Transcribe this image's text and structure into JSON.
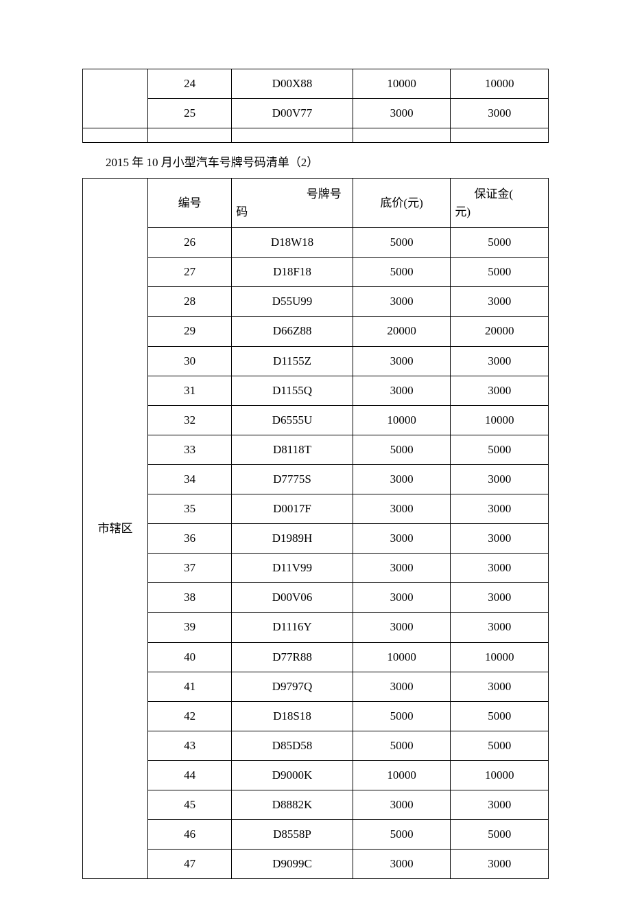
{
  "title2": "2015 年 10 月小型汽车号牌号码清单（2）",
  "headers": {
    "num": "编号",
    "plate_top": "号牌号",
    "plate_bot": "码",
    "price": "底价(元)",
    "deposit_top": "保证金(",
    "deposit_bot": "元)"
  },
  "region2": "市辖区",
  "table1": [
    {
      "num": "24",
      "plate": "D00X88",
      "price": "10000",
      "deposit": "10000"
    },
    {
      "num": "25",
      "plate": "D00V77",
      "price": "3000",
      "deposit": "3000"
    }
  ],
  "table2": [
    {
      "num": "26",
      "plate": "D18W18",
      "price": "5000",
      "deposit": "5000"
    },
    {
      "num": "27",
      "plate": "D18F18",
      "price": "5000",
      "deposit": "5000"
    },
    {
      "num": "28",
      "plate": "D55U99",
      "price": "3000",
      "deposit": "3000"
    },
    {
      "num": "29",
      "plate": "D66Z88",
      "price": "20000",
      "deposit": "20000"
    },
    {
      "num": "30",
      "plate": "D1155Z",
      "price": "3000",
      "deposit": "3000"
    },
    {
      "num": "31",
      "plate": "D1155Q",
      "price": "3000",
      "deposit": "3000"
    },
    {
      "num": "32",
      "plate": "D6555U",
      "price": "10000",
      "deposit": "10000"
    },
    {
      "num": "33",
      "plate": "D8118T",
      "price": "5000",
      "deposit": "5000"
    },
    {
      "num": "34",
      "plate": "D7775S",
      "price": "3000",
      "deposit": "3000"
    },
    {
      "num": "35",
      "plate": "D0017F",
      "price": "3000",
      "deposit": "3000"
    },
    {
      "num": "36",
      "plate": "D1989H",
      "price": "3000",
      "deposit": "3000"
    },
    {
      "num": "37",
      "plate": "D11V99",
      "price": "3000",
      "deposit": "3000"
    },
    {
      "num": "38",
      "plate": "D00V06",
      "price": "3000",
      "deposit": "3000"
    },
    {
      "num": "39",
      "plate": "D1116Y",
      "price": "3000",
      "deposit": "3000"
    },
    {
      "num": "40",
      "plate": "D77R88",
      "price": "10000",
      "deposit": "10000"
    },
    {
      "num": "41",
      "plate": "D9797Q",
      "price": "3000",
      "deposit": "3000"
    },
    {
      "num": "42",
      "plate": "D18S18",
      "price": "5000",
      "deposit": "5000"
    },
    {
      "num": "43",
      "plate": "D85D58",
      "price": "5000",
      "deposit": "5000"
    },
    {
      "num": "44",
      "plate": "D9000K",
      "price": "10000",
      "deposit": "10000"
    },
    {
      "num": "45",
      "plate": "D8882K",
      "price": "3000",
      "deposit": "3000"
    },
    {
      "num": "46",
      "plate": "D8558P",
      "price": "5000",
      "deposit": "5000"
    },
    {
      "num": "47",
      "plate": "D9099C",
      "price": "3000",
      "deposit": "3000"
    }
  ]
}
